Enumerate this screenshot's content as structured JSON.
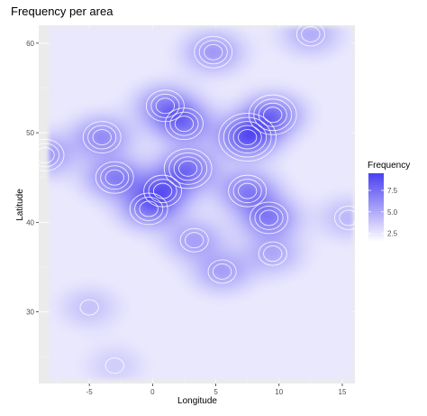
{
  "chart_data": {
    "type": "heatmap",
    "title": "Frequency per area",
    "xlabel": "Longitude",
    "ylabel": "Latitude",
    "xlim": [
      -9,
      16
    ],
    "ylim": [
      22,
      62
    ],
    "x_ticks": [
      -5,
      0,
      5,
      10,
      15
    ],
    "y_ticks": [
      30,
      40,
      50,
      60
    ],
    "grid": true,
    "legend": {
      "title": "Frequency",
      "position": "right",
      "ticks": [
        2.5,
        5.0,
        7.5
      ],
      "range": [
        1.5,
        9.5
      ],
      "low_color": "#ffffff",
      "high_color": "#4b3ff0"
    },
    "colors": {
      "panel_background": "#ebebeb",
      "gridline": "#ffffff",
      "contour": "#ffffff",
      "density_low": "#ffffff",
      "density_high": "#4b3ff0"
    },
    "hotspots": [
      {
        "x": 7.5,
        "y": 49.5,
        "value": 7.0
      },
      {
        "x": 9.5,
        "y": 52.0,
        "value": 5.5
      },
      {
        "x": 4.8,
        "y": 59.0,
        "value": 4.0
      },
      {
        "x": -4.0,
        "y": 49.5,
        "value": 4.5
      },
      {
        "x": 2.5,
        "y": 51.0,
        "value": 5.0
      },
      {
        "x": 1.0,
        "y": 53.0,
        "value": 4.5
      },
      {
        "x": 2.8,
        "y": 46.0,
        "value": 5.5
      },
      {
        "x": 0.8,
        "y": 43.5,
        "value": 5.0
      },
      {
        "x": -3.0,
        "y": 45.0,
        "value": 5.0
      },
      {
        "x": 7.5,
        "y": 43.5,
        "value": 5.0
      },
      {
        "x": 9.2,
        "y": 40.5,
        "value": 5.0
      },
      {
        "x": -0.3,
        "y": 41.5,
        "value": 4.5
      },
      {
        "x": 5.5,
        "y": 34.5,
        "value": 3.5
      },
      {
        "x": 3.3,
        "y": 38.0,
        "value": 3.5
      },
      {
        "x": 9.5,
        "y": 36.5,
        "value": 3.0
      },
      {
        "x": 15.5,
        "y": 40.5,
        "value": 2.5
      },
      {
        "x": 12.5,
        "y": 61.0,
        "value": 3.0
      },
      {
        "x": -8.5,
        "y": 47.5,
        "value": 4.0
      },
      {
        "x": -5.0,
        "y": 30.5,
        "value": 2.0
      },
      {
        "x": -3.0,
        "y": 24.0,
        "value": 1.5
      }
    ]
  }
}
